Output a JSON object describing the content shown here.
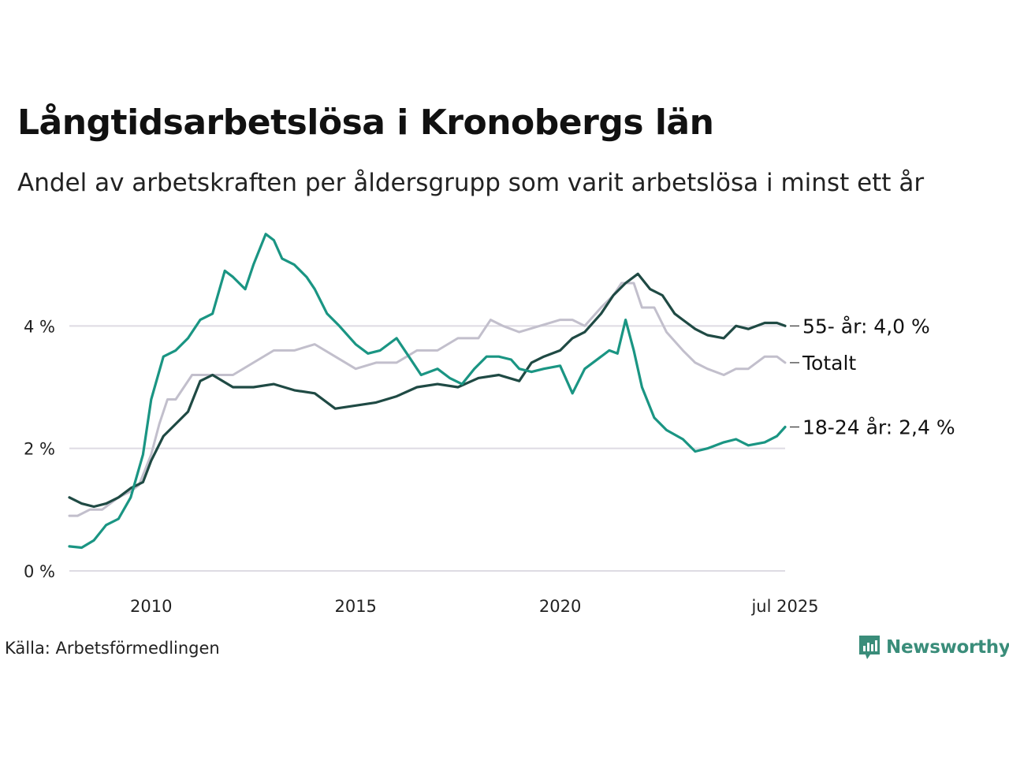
{
  "title": "Långtidsarbetslösa i Kronobergs län",
  "subtitle": "Andel av arbetskraften per åldersgrupp som varit arbetslösa i minst ett år",
  "source": "Källa: Arbetsförmedlingen",
  "brand": {
    "name": "Newsworthy",
    "icon": "bar-chart-icon",
    "color": "#3a8d7a"
  },
  "chart_data": {
    "type": "line",
    "title": "Långtidsarbetslösa i Kronobergs län",
    "xlabel": "",
    "ylabel": "",
    "xlim": [
      2008.0,
      2025.5
    ],
    "ylim": [
      0,
      6
    ],
    "grid": true,
    "legend": "end-labels",
    "x_ticks": [
      {
        "value": 2010,
        "label": "2010"
      },
      {
        "value": 2015,
        "label": "2015"
      },
      {
        "value": 2020,
        "label": "2020"
      },
      {
        "value": 2025.5,
        "label": "jul 2025"
      }
    ],
    "y_ticks": [
      {
        "value": 0,
        "label": "0 %"
      },
      {
        "value": 2,
        "label": "2 %"
      },
      {
        "value": 4,
        "label": "4 %"
      }
    ],
    "series": [
      {
        "name": "Totalt",
        "label": "Totalt",
        "color": "#c2bfcc",
        "x": [
          2008.0,
          2008.2,
          2008.5,
          2008.8,
          2009.0,
          2009.2,
          2009.5,
          2009.7,
          2010.0,
          2010.2,
          2010.4,
          2010.6,
          2010.8,
          2011.0,
          2011.5,
          2012.0,
          2012.5,
          2013.0,
          2013.5,
          2014.0,
          2014.5,
          2015.0,
          2015.5,
          2016.0,
          2016.5,
          2017.0,
          2017.5,
          2017.8,
          2018.0,
          2018.3,
          2018.6,
          2019.0,
          2019.5,
          2020.0,
          2020.3,
          2020.6,
          2021.0,
          2021.3,
          2021.5,
          2021.8,
          2022.0,
          2022.3,
          2022.6,
          2023.0,
          2023.3,
          2023.6,
          2024.0,
          2024.3,
          2024.6,
          2025.0,
          2025.3,
          2025.5
        ],
        "y": [
          0.9,
          0.9,
          1.0,
          1.0,
          1.1,
          1.2,
          1.3,
          1.4,
          1.9,
          2.4,
          2.8,
          2.8,
          3.0,
          3.2,
          3.2,
          3.2,
          3.4,
          3.6,
          3.6,
          3.7,
          3.5,
          3.3,
          3.4,
          3.4,
          3.6,
          3.6,
          3.8,
          3.8,
          3.8,
          4.1,
          4.0,
          3.9,
          4.0,
          4.1,
          4.1,
          4.0,
          4.3,
          4.5,
          4.7,
          4.7,
          4.3,
          4.3,
          3.9,
          3.6,
          3.4,
          3.3,
          3.2,
          3.3,
          3.3,
          3.5,
          3.5,
          3.4
        ]
      },
      {
        "name": "55- år",
        "label": "55- år: 4,0 %",
        "color": "#1f4a44",
        "x": [
          2008.0,
          2008.3,
          2008.6,
          2008.9,
          2009.2,
          2009.5,
          2009.8,
          2010.0,
          2010.3,
          2010.6,
          2010.9,
          2011.2,
          2011.5,
          2012.0,
          2012.5,
          2013.0,
          2013.5,
          2014.0,
          2014.5,
          2015.0,
          2015.5,
          2016.0,
          2016.5,
          2017.0,
          2017.5,
          2018.0,
          2018.5,
          2019.0,
          2019.3,
          2019.6,
          2020.0,
          2020.3,
          2020.6,
          2021.0,
          2021.3,
          2021.6,
          2021.9,
          2022.2,
          2022.5,
          2022.8,
          2023.0,
          2023.3,
          2023.6,
          2024.0,
          2024.3,
          2024.6,
          2025.0,
          2025.3,
          2025.5
        ],
        "y": [
          1.2,
          1.1,
          1.05,
          1.1,
          1.2,
          1.35,
          1.45,
          1.8,
          2.2,
          2.4,
          2.6,
          3.1,
          3.2,
          3.0,
          3.0,
          3.05,
          2.95,
          2.9,
          2.65,
          2.7,
          2.75,
          2.85,
          3.0,
          3.05,
          3.0,
          3.15,
          3.2,
          3.1,
          3.4,
          3.5,
          3.6,
          3.8,
          3.9,
          4.2,
          4.5,
          4.7,
          4.85,
          4.6,
          4.5,
          4.2,
          4.1,
          3.95,
          3.85,
          3.8,
          4.0,
          3.95,
          4.05,
          4.05,
          4.0
        ]
      },
      {
        "name": "18-24 år",
        "label": "18-24 år: 2,4 %",
        "color": "#1a9583",
        "x": [
          2008.0,
          2008.3,
          2008.6,
          2008.9,
          2009.2,
          2009.5,
          2009.8,
          2010.0,
          2010.3,
          2010.6,
          2010.9,
          2011.2,
          2011.5,
          2011.8,
          2012.0,
          2012.3,
          2012.5,
          2012.8,
          2013.0,
          2013.2,
          2013.5,
          2013.8,
          2014.0,
          2014.3,
          2014.6,
          2015.0,
          2015.3,
          2015.6,
          2016.0,
          2016.3,
          2016.6,
          2017.0,
          2017.3,
          2017.6,
          2017.9,
          2018.2,
          2018.5,
          2018.8,
          2019.0,
          2019.3,
          2019.6,
          2020.0,
          2020.3,
          2020.6,
          2021.0,
          2021.2,
          2021.4,
          2021.6,
          2021.8,
          2022.0,
          2022.3,
          2022.6,
          2023.0,
          2023.3,
          2023.6,
          2024.0,
          2024.3,
          2024.6,
          2025.0,
          2025.3,
          2025.5
        ],
        "y": [
          0.4,
          0.38,
          0.5,
          0.75,
          0.85,
          1.2,
          1.9,
          2.8,
          3.5,
          3.6,
          3.8,
          4.1,
          4.2,
          4.9,
          4.8,
          4.6,
          5.0,
          5.5,
          5.4,
          5.1,
          5.0,
          4.8,
          4.6,
          4.2,
          4.0,
          3.7,
          3.55,
          3.6,
          3.8,
          3.5,
          3.2,
          3.3,
          3.15,
          3.05,
          3.3,
          3.5,
          3.5,
          3.45,
          3.3,
          3.25,
          3.3,
          3.35,
          2.9,
          3.3,
          3.5,
          3.6,
          3.55,
          4.1,
          3.6,
          3.0,
          2.5,
          2.3,
          2.15,
          1.95,
          2.0,
          2.1,
          2.15,
          2.05,
          2.1,
          2.2,
          2.35
        ]
      }
    ]
  }
}
